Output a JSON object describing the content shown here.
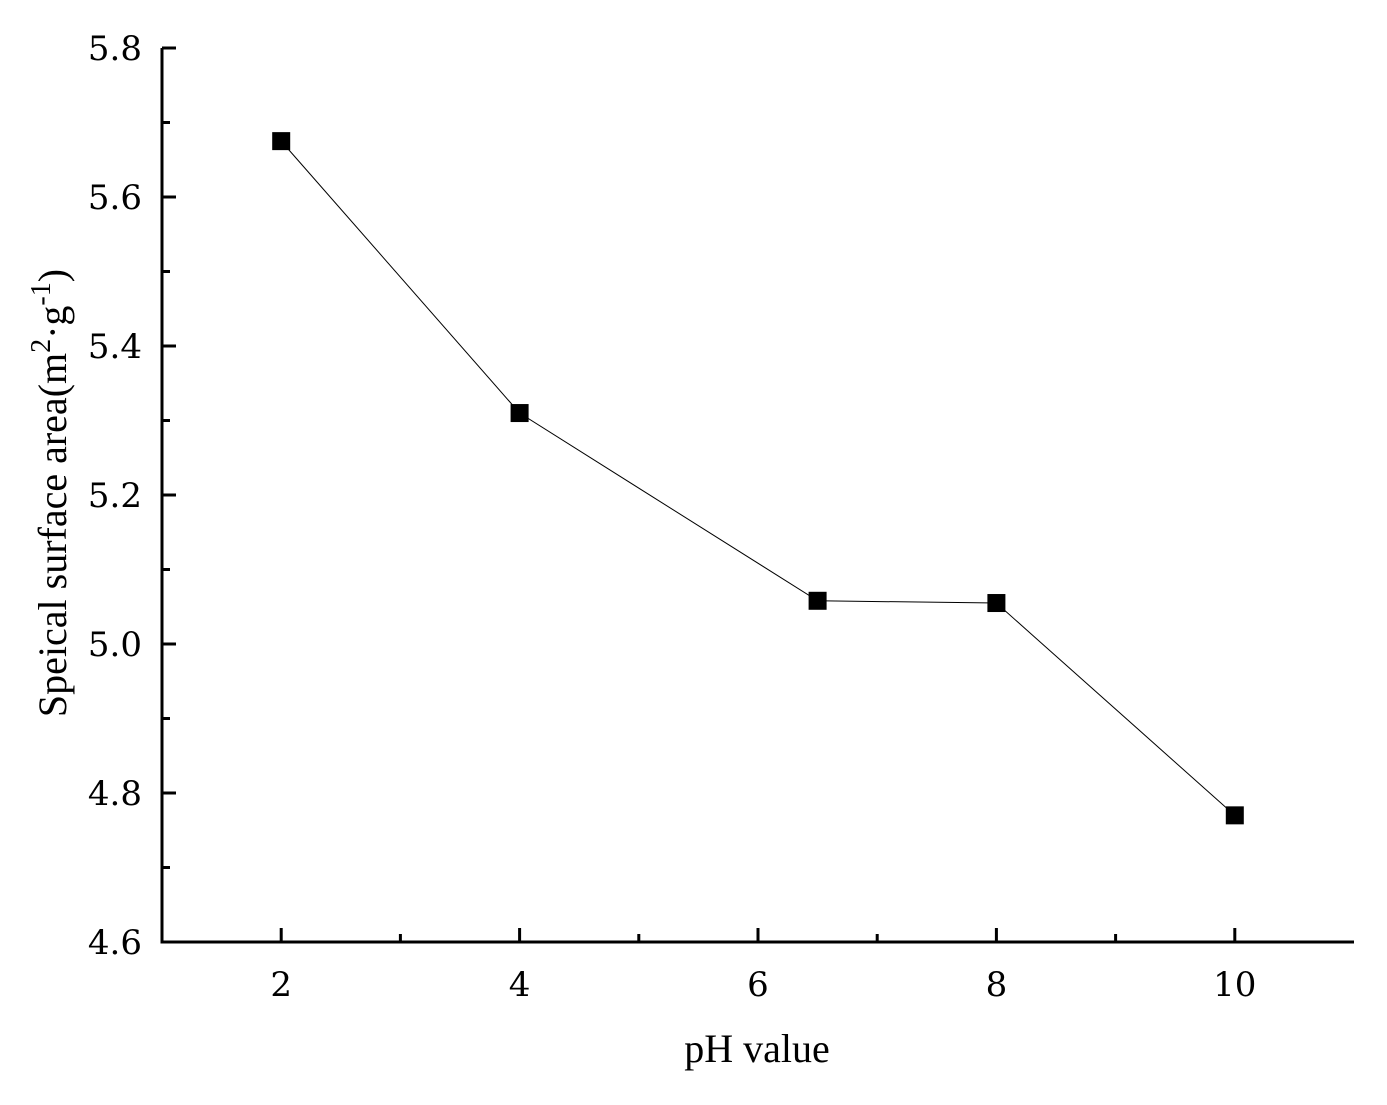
{
  "chart_data": {
    "type": "line",
    "x": [
      2,
      4,
      6.5,
      8,
      10
    ],
    "series": [
      {
        "values": [
          5.675,
          5.31,
          5.058,
          5.055,
          4.77
        ]
      }
    ],
    "xlabel": "pH value",
    "ylabel_parts": [
      "Speical surface area(m",
      "2",
      "·g",
      "-1",
      ")"
    ],
    "xlim": [
      1,
      11
    ],
    "ylim": [
      4.6,
      5.8
    ],
    "xticks": [
      2,
      4,
      6,
      8,
      10
    ],
    "xtick_labels": [
      "2",
      "4",
      "6",
      "8",
      "10"
    ],
    "yticks": [
      4.6,
      4.8,
      5.0,
      5.2,
      5.4,
      5.6,
      5.8
    ],
    "ytick_labels": [
      "4.6",
      "4.8",
      "5.0",
      "5.2",
      "5.4",
      "5.6",
      "5.8"
    ],
    "marker": "square",
    "line_color": "#000000",
    "marker_color": "#000000",
    "grid": false,
    "legend": "none"
  }
}
